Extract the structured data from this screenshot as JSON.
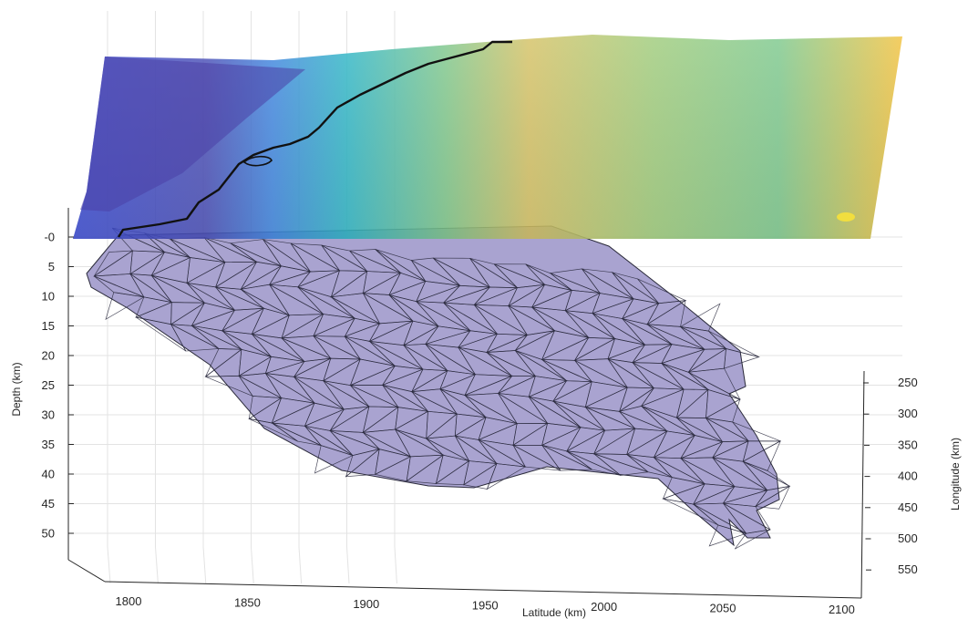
{
  "chart_data": {
    "type": "3d-surface",
    "xlabel": "Latitude (km)",
    "ylabel": "Longitude (km)",
    "zlabel": "Depth (km)",
    "x_ticks": [
      "1800",
      "1850",
      "1900",
      "1950",
      "2000",
      "2050",
      "2100"
    ],
    "y_ticks": [
      "250",
      "300",
      "350",
      "400",
      "450",
      "500",
      "550"
    ],
    "z_ticks": [
      "-0",
      "5",
      "10",
      "15",
      "20",
      "25",
      "30",
      "35",
      "40",
      "45",
      "50"
    ],
    "xlim": [
      1780,
      2110
    ],
    "ylim": [
      230,
      560
    ],
    "zlim": [
      -2,
      53
    ],
    "grid": true,
    "series": [
      {
        "kind": "topography surface at depth 0",
        "colormap": "parula"
      },
      {
        "kind": "triangulated fault mesh",
        "color": "#a39ec8"
      },
      {
        "kind": "coastline",
        "color": "#111111"
      }
    ]
  }
}
